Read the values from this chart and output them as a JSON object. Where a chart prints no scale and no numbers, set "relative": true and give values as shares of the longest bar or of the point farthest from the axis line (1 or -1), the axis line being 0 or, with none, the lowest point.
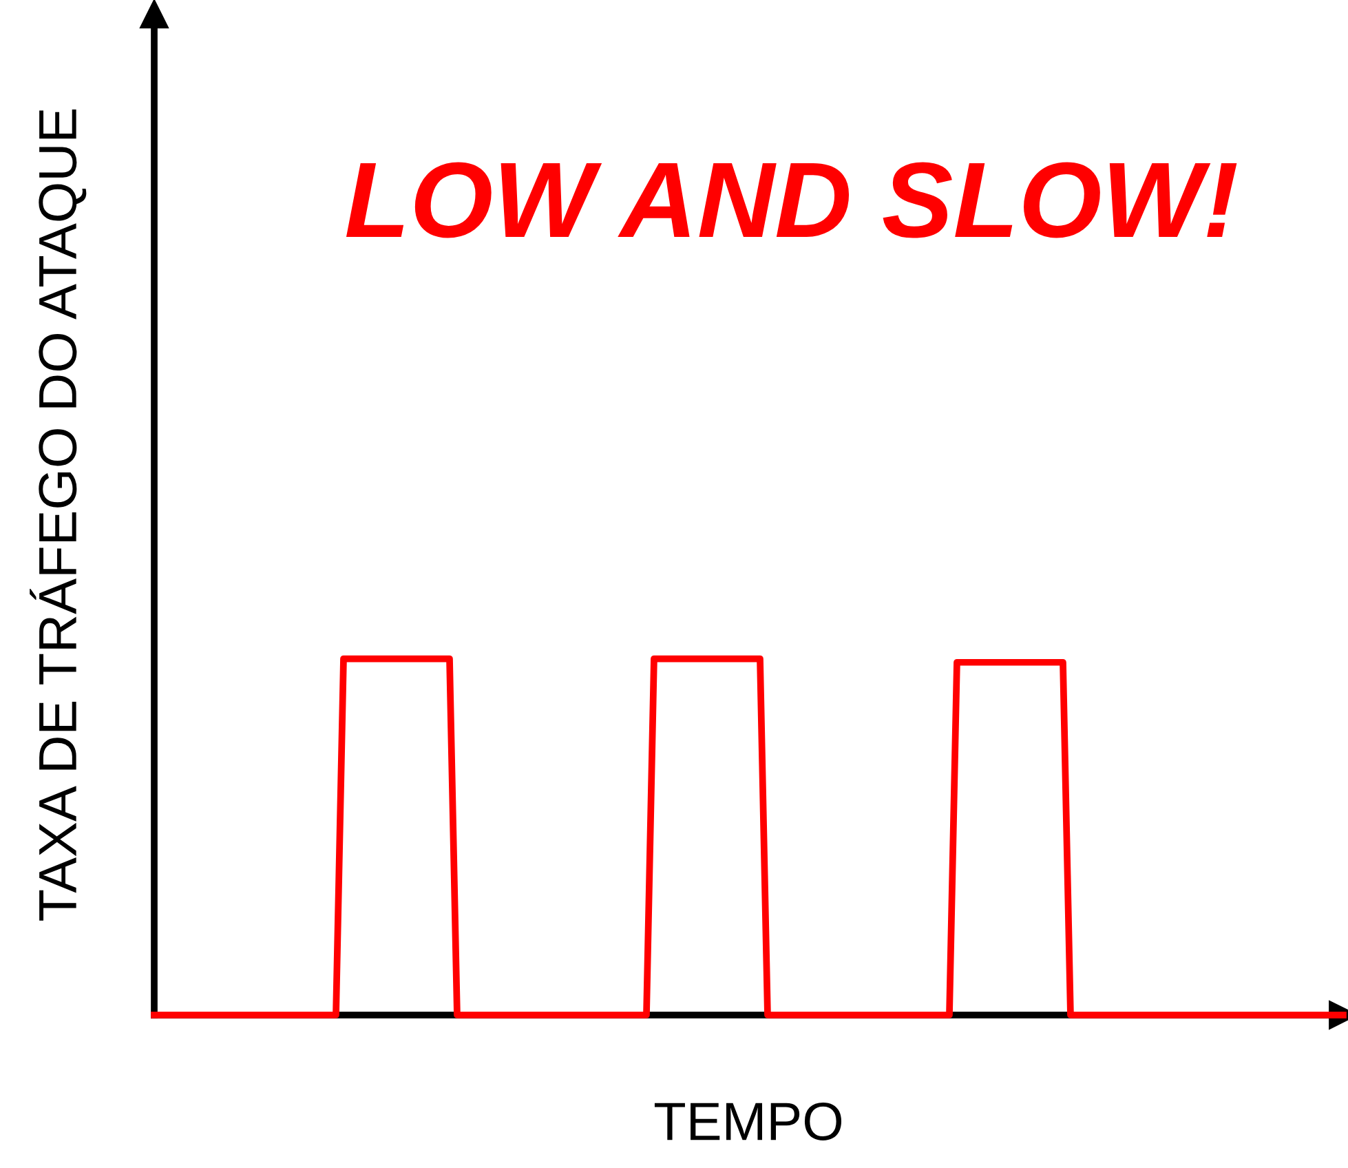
{
  "chart_data": {
    "type": "line",
    "relative": true,
    "categories": [
      null,
      null,
      null,
      null,
      null,
      null,
      null,
      null,
      null,
      null,
      null,
      null,
      null,
      null,
      null,
      null,
      null,
      null,
      null,
      null,
      null,
      null,
      null,
      null,
      null,
      null,
      null,
      null,
      null,
      null,
      null,
      null,
      null,
      null,
      null,
      null,
      null,
      null,
      null,
      null,
      null,
      null,
      null,
      null,
      null,
      null,
      null,
      null,
      null,
      null,
      null,
      null,
      null,
      null,
      null,
      null,
      null,
      null,
      null,
      null,
      null,
      null,
      null,
      null,
      null,
      null,
      null,
      null,
      null,
      null,
      null,
      null,
      null,
      null,
      null,
      null,
      null,
      null,
      null,
      null,
      null,
      null,
      null,
      null,
      null,
      null,
      null,
      null,
      null,
      null,
      null,
      null,
      null,
      null,
      null,
      null,
      null,
      null,
      null,
      null,
      null,
      null,
      null,
      null,
      null,
      null,
      null,
      null,
      null,
      null,
      null,
      null,
      null,
      null,
      null,
      null,
      null,
      null,
      null,
      null,
      null,
      null,
      null,
      null,
      null,
      null,
      null,
      null,
      null,
      null,
      null,
      null,
      null,
      null,
      null,
      null,
      null,
      null,
      null,
      null,
      null,
      null,
      null,
      null,
      null,
      null,
      null,
      null,
      null,
      null,
      null,
      null,
      null,
      null,
      null,
      null,
      null,
      null
    ],
    "series": [
      {
        "color": "#ff0000",
        "values": [
          0,
          0,
          0,
          0,
          0,
          0,
          0,
          0,
          0,
          0,
          0,
          0,
          0,
          0,
          0,
          0,
          0,
          0,
          0,
          0,
          0,
          0,
          0,
          0,
          0,
          1,
          1,
          1,
          1,
          1,
          1,
          1,
          1,
          1,
          1,
          1,
          1,
          1,
          1,
          1,
          0,
          0,
          0,
          0,
          0,
          0,
          0,
          0,
          0,
          0,
          0,
          0,
          0,
          0,
          0,
          0,
          0,
          0,
          0,
          0,
          0,
          0,
          0,
          0,
          0,
          0,
          1,
          1,
          1,
          1,
          1,
          1,
          1,
          1,
          1,
          1,
          1,
          1,
          1,
          1,
          1,
          0,
          0,
          0,
          0,
          0,
          0,
          0,
          0,
          0,
          0,
          0,
          0,
          0,
          0,
          0,
          0,
          0,
          0,
          0,
          0,
          0,
          0,
          0,
          0,
          0,
          0.99,
          0.99,
          0.99,
          0.99,
          0.99,
          0.99,
          0.99,
          0.99,
          0.99,
          0.99,
          0.99,
          0.99,
          0.99,
          0.99,
          0.99,
          0,
          0,
          0,
          0,
          0,
          0,
          0,
          0,
          0,
          0,
          0,
          0,
          0,
          0,
          0,
          0,
          0,
          0,
          0,
          0,
          0,
          0,
          0,
          0,
          0,
          0,
          0,
          0,
          0,
          0,
          0,
          0,
          0,
          0,
          0,
          0,
          0
        ]
      }
    ],
    "xlabel": "TEMPO",
    "ylabel": "TAXA DE TRÁFEGO DO ATAQUE",
    "annotations": [
      "LOW AND SLOW!"
    ]
  }
}
